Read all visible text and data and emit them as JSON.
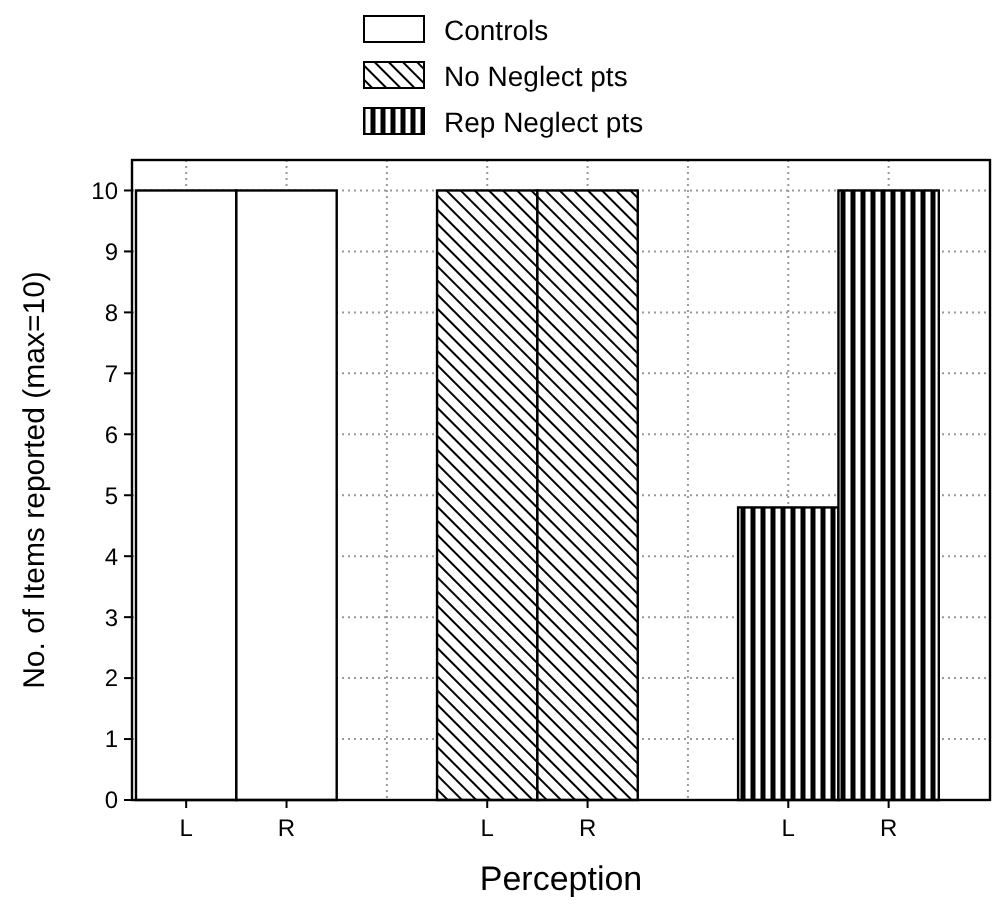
{
  "chart_data": {
    "type": "bar",
    "xlabel": "Perception",
    "ylabel": "No. of Items reported (max=10)",
    "categories": [
      "L",
      "R",
      null,
      "L",
      "R",
      null,
      "L",
      "R"
    ],
    "series": [
      {
        "name": "Controls",
        "color": "#ffffff",
        "values": [
          10,
          10,
          null,
          null,
          null,
          null,
          null,
          null
        ]
      },
      {
        "name": "No Neglect pts",
        "color": "#000000",
        "values": [
          null,
          null,
          null,
          10,
          10,
          null,
          null,
          null
        ]
      },
      {
        "name": "Rep Neglect pts",
        "color": "#000000",
        "values": [
          null,
          null,
          null,
          null,
          null,
          null,
          4.8,
          10
        ]
      }
    ],
    "ylim": [
      0,
      10.5
    ],
    "yticks": [
      0,
      1,
      2,
      3,
      4,
      5,
      6,
      7,
      8,
      9,
      10
    ],
    "grid": true,
    "legend": "top"
  }
}
